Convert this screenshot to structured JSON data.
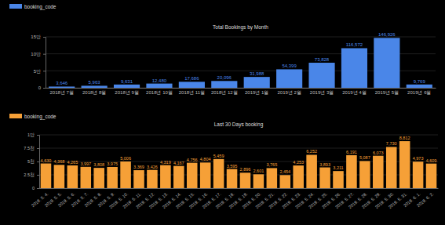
{
  "chart_data": [
    {
      "type": "bar",
      "title": "Total Bookings by Month",
      "categories": [
        "2018년 7월",
        "2018년 8월",
        "2018년 9월",
        "2018년 10월",
        "2018년 11월",
        "2018년 12월",
        "2019년 1월",
        "2019년 2월",
        "2019년 3월",
        "2019년 4월",
        "2019년 5월",
        "2019년 6월"
      ],
      "series": [
        {
          "name": "booking_code",
          "color": "#4a86e8",
          "values": [
            3646,
            5963,
            9631,
            12480,
            17686,
            20096,
            31988,
            54399,
            73828,
            116572,
            146926,
            9769
          ],
          "value_labels": [
            "3,646",
            "5,963",
            "9,631",
            "12,480",
            "17,686",
            "20,096",
            "31,988",
            "54,399",
            "73,828",
            "116,572",
            "146,926",
            "9,769"
          ]
        }
      ],
      "ylim": [
        0,
        150000
      ],
      "yticks": [
        0,
        {
          "value": 50000,
          "label": "5만"
        },
        {
          "value": 100000,
          "label": "10만"
        },
        {
          "value": 150000,
          "label": "15만"
        }
      ],
      "grid": true,
      "legend": "top-left",
      "data_labels": true
    },
    {
      "type": "bar",
      "title": "Last 30 Days booking",
      "categories": [
        "2019. 5. 4.",
        "2019. 5. 5.",
        "2019. 5. 6.",
        "2019. 5. 7.",
        "2019. 5. 8.",
        "2019. 5. 9.",
        "2019. 5. 10.",
        "2019. 5. 11.",
        "2019. 5. 12.",
        "2019. 5. 13.",
        "2019. 5. 14.",
        "2019. 5. 15.",
        "2019. 5. 16.",
        "2019. 5. 17.",
        "2019. 5. 18.",
        "2019. 5. 19.",
        "2019. 5. 20.",
        "2019. 5. 21.",
        "2019. 5. 22.",
        "2019. 5. 23.",
        "2019. 5. 24.",
        "2019. 5. 25.",
        "2019. 5. 26.",
        "2019. 5. 27.",
        "2019. 5. 28.",
        "2019. 5. 29.",
        "2019. 5. 30.",
        "2019. 5. 31.",
        "2019. 6. 1.",
        "2019. 6. 2."
      ],
      "series": [
        {
          "name": "booking_code",
          "color": "#f6a037",
          "values": [
            4630,
            4368,
            4265,
            3997,
            3808,
            3975,
            5006,
            3369,
            3426,
            4319,
            4167,
            4756,
            4804,
            5459,
            3595,
            2896,
            2601,
            3765,
            2454,
            4253,
            6252,
            3893,
            3211,
            6191,
            5087,
            6073,
            7730,
            8812,
            4973,
            4609
          ],
          "value_labels": [
            "4,630",
            "4,368",
            "4,265",
            "3,997",
            "3,808",
            "3,975",
            "5,006",
            "3,369",
            "3,426",
            "4,319",
            "4,167",
            "4,756",
            "4,804",
            "5,459",
            "3,595",
            "2,896",
            "2,601",
            "3,765",
            "2,454",
            "4,253",
            "6,252",
            "3,893",
            "3,211",
            "6,191",
            "5,087",
            "6,073",
            "7,730",
            "8,812",
            "4,973",
            "4,609"
          ]
        }
      ],
      "ylim": [
        0,
        10000
      ],
      "yticks": [
        0,
        {
          "value": 2500,
          "label": "2.5천"
        },
        {
          "value": 5000,
          "label": "5천"
        },
        {
          "value": 7500,
          "label": "7.5천"
        },
        {
          "value": 10000,
          "label": "1만"
        }
      ],
      "grid": true,
      "legend": "top-left",
      "data_labels": true
    }
  ]
}
